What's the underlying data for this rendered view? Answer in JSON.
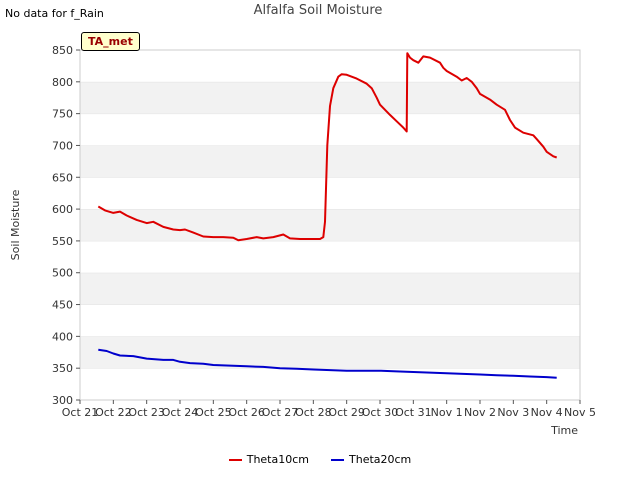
{
  "nodata_text": "No data for f_Rain",
  "tag_label": "TA_met",
  "chart_data": {
    "type": "line",
    "title": "Alfalfa Soil Moisture",
    "xlabel": "Time",
    "ylabel": "Soil Moisture",
    "xlim": [
      0,
      15
    ],
    "ylim": [
      300,
      850
    ],
    "yticks": [
      300,
      350,
      400,
      450,
      500,
      550,
      600,
      650,
      700,
      750,
      800,
      850
    ],
    "xticks": [
      {
        "v": 0,
        "label": "Oct 21"
      },
      {
        "v": 1,
        "label": "Oct 22"
      },
      {
        "v": 2,
        "label": "Oct 23"
      },
      {
        "v": 3,
        "label": "Oct 24"
      },
      {
        "v": 4,
        "label": "Oct 25"
      },
      {
        "v": 5,
        "label": "Oct 26"
      },
      {
        "v": 6,
        "label": "Oct 27"
      },
      {
        "v": 7,
        "label": "Oct 28"
      },
      {
        "v": 8,
        "label": "Oct 29"
      },
      {
        "v": 9,
        "label": "Oct 30"
      },
      {
        "v": 10,
        "label": "Oct 31"
      },
      {
        "v": 11,
        "label": "Nov 1"
      },
      {
        "v": 12,
        "label": "Nov 2"
      },
      {
        "v": 13,
        "label": "Nov 3"
      },
      {
        "v": 14,
        "label": "Nov 4"
      },
      {
        "v": 15,
        "label": "Nov 5"
      }
    ],
    "grid": "horizontal-bands",
    "series": [
      {
        "name": "Theta10cm",
        "color": "#dd0000",
        "points": [
          [
            0.55,
            604
          ],
          [
            0.75,
            598
          ],
          [
            1.0,
            594
          ],
          [
            1.2,
            596
          ],
          [
            1.4,
            590
          ],
          [
            1.7,
            583
          ],
          [
            2.0,
            578
          ],
          [
            2.2,
            580
          ],
          [
            2.5,
            572
          ],
          [
            2.8,
            568
          ],
          [
            3.0,
            567
          ],
          [
            3.15,
            568
          ],
          [
            3.4,
            563
          ],
          [
            3.7,
            557
          ],
          [
            4.0,
            556
          ],
          [
            4.3,
            556
          ],
          [
            4.6,
            555
          ],
          [
            4.75,
            551
          ],
          [
            5.0,
            553
          ],
          [
            5.3,
            556
          ],
          [
            5.5,
            554
          ],
          [
            5.8,
            556
          ],
          [
            6.1,
            560
          ],
          [
            6.3,
            554
          ],
          [
            6.6,
            553
          ],
          [
            7.0,
            553
          ],
          [
            7.2,
            553
          ],
          [
            7.3,
            556
          ],
          [
            7.35,
            580
          ],
          [
            7.42,
            700
          ],
          [
            7.5,
            762
          ],
          [
            7.6,
            790
          ],
          [
            7.75,
            808
          ],
          [
            7.85,
            812
          ],
          [
            8.0,
            811
          ],
          [
            8.3,
            805
          ],
          [
            8.6,
            797
          ],
          [
            8.75,
            790
          ],
          [
            8.9,
            775
          ],
          [
            9.0,
            764
          ],
          [
            9.3,
            748
          ],
          [
            9.5,
            738
          ],
          [
            9.7,
            728
          ],
          [
            9.8,
            722
          ],
          [
            9.82,
            845
          ],
          [
            9.9,
            838
          ],
          [
            10.0,
            834
          ],
          [
            10.15,
            830
          ],
          [
            10.3,
            840
          ],
          [
            10.5,
            838
          ],
          [
            10.8,
            830
          ],
          [
            10.9,
            822
          ],
          [
            11.0,
            817
          ],
          [
            11.3,
            808
          ],
          [
            11.45,
            802
          ],
          [
            11.6,
            806
          ],
          [
            11.75,
            800
          ],
          [
            11.9,
            790
          ],
          [
            12.0,
            781
          ],
          [
            12.3,
            772
          ],
          [
            12.5,
            764
          ],
          [
            12.75,
            756
          ],
          [
            12.9,
            740
          ],
          [
            13.05,
            728
          ],
          [
            13.3,
            720
          ],
          [
            13.6,
            716
          ],
          [
            13.7,
            710
          ],
          [
            13.9,
            698
          ],
          [
            14.0,
            690
          ],
          [
            14.2,
            683
          ],
          [
            14.3,
            681
          ]
        ]
      },
      {
        "name": "Theta20cm",
        "color": "#0000cc",
        "points": [
          [
            0.55,
            379
          ],
          [
            0.8,
            377
          ],
          [
            1.0,
            373
          ],
          [
            1.2,
            370
          ],
          [
            1.6,
            369
          ],
          [
            2.0,
            365
          ],
          [
            2.5,
            363
          ],
          [
            2.8,
            363
          ],
          [
            3.0,
            360
          ],
          [
            3.3,
            358
          ],
          [
            3.7,
            357
          ],
          [
            4.0,
            355
          ],
          [
            4.5,
            354
          ],
          [
            5.0,
            353
          ],
          [
            5.5,
            352
          ],
          [
            6.0,
            350
          ],
          [
            6.5,
            349
          ],
          [
            7.0,
            348
          ],
          [
            7.5,
            347
          ],
          [
            8.0,
            346
          ],
          [
            9.0,
            346
          ],
          [
            9.5,
            345
          ],
          [
            10.0,
            344
          ],
          [
            10.5,
            343
          ],
          [
            11.0,
            342
          ],
          [
            11.5,
            341
          ],
          [
            12.0,
            340
          ],
          [
            12.5,
            339
          ],
          [
            13.0,
            338
          ],
          [
            13.5,
            337
          ],
          [
            14.0,
            336
          ],
          [
            14.3,
            335
          ]
        ]
      }
    ]
  }
}
